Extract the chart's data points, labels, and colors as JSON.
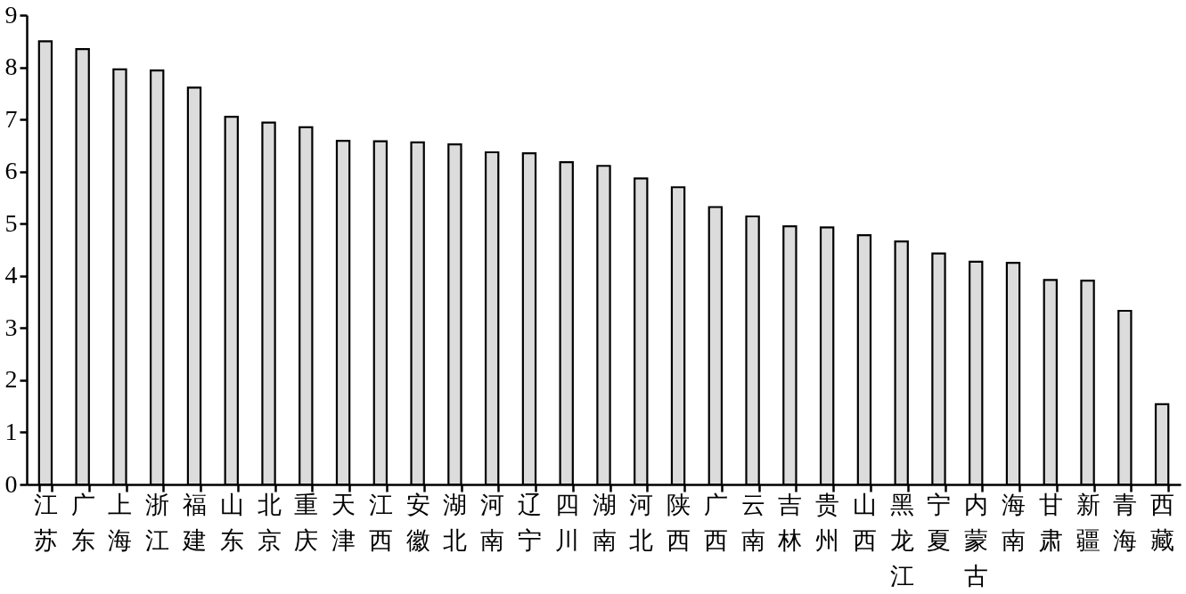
{
  "chart_data": {
    "type": "bar",
    "categories": [
      "江苏",
      "广东",
      "上海",
      "浙江",
      "福建",
      "山东",
      "北京",
      "重庆",
      "天津",
      "江西",
      "安徽",
      "湖北",
      "河南",
      "辽宁",
      "四川",
      "湖南",
      "河北",
      "陕西",
      "广西",
      "云南",
      "吉林",
      "贵州",
      "山西",
      "黑龙江",
      "宁夏",
      "内蒙古",
      "海南",
      "甘肃",
      "新疆",
      "青海",
      "西藏"
    ],
    "values": [
      8.5,
      8.35,
      7.96,
      7.94,
      7.61,
      7.05,
      6.94,
      6.85,
      6.59,
      6.58,
      6.56,
      6.52,
      6.37,
      6.35,
      6.18,
      6.11,
      5.87,
      5.7,
      5.32,
      5.14,
      4.95,
      4.93,
      4.78,
      4.66,
      4.43,
      4.27,
      4.25,
      3.92,
      3.91,
      3.33,
      1.54
    ],
    "color": "#dcdcdc",
    "ylim": [
      0,
      9
    ],
    "yticks": [
      0,
      1,
      2,
      3,
      4,
      5,
      6,
      7,
      8,
      9
    ]
  }
}
